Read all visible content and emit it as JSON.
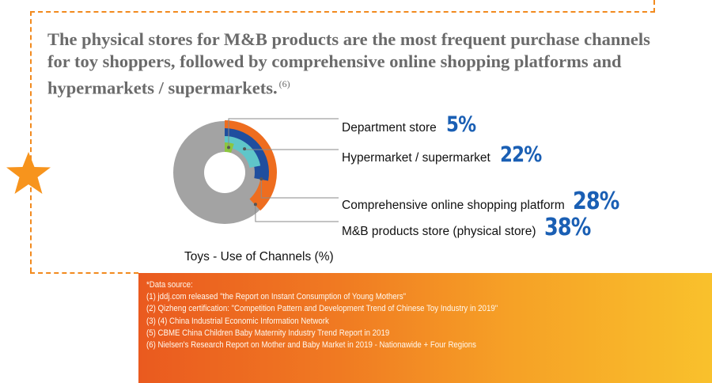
{
  "headline": {
    "text": "The physical stores for M&B products are the most frequent purchase channels for toy shoppers, followed by comprehensive online shopping platforms and hypermarkets / supermarkets.",
    "ref": "(6)"
  },
  "chart_data": {
    "type": "pie",
    "title": "Toys - Use of Channels (%)",
    "unit": "%",
    "categories": [
      "Department store",
      "Hypermarket / supermarket",
      "Comprehensive online shopping platform",
      "M&B products store (physical store)"
    ],
    "values": [
      5,
      22,
      28,
      38
    ],
    "value_labels": [
      "5%",
      "22%",
      "28%",
      "38%"
    ],
    "colors": [
      "#8cc63f",
      "#5fc6c9",
      "#1f4e9e",
      "#ee6d1f"
    ],
    "track_color": "#a3a3a3"
  },
  "source": {
    "lines": [
      "*Data source:",
      "(1) jddj.com released \"the Report on Instant Consumption of Young Mothers\"",
      "(2) Qizheng certification: \"Competition Pattern and Development Trend of Chinese Toy Industry in 2019\"",
      "(3) (4) China Industrial Economic Information Network",
      "(5) CBME China Children Baby Maternity Industry Trend Report in 2019",
      "(6) Nielsen's Research Report on Mother and Baby Market in 2019 - Nationawide + Four Regions"
    ]
  },
  "colors": {
    "frame": "#f28a1e",
    "star": "#f7941d",
    "percent_text": "#1a5fb4",
    "headline_text": "#6b6b6b"
  },
  "icons": [
    "star-icon"
  ]
}
